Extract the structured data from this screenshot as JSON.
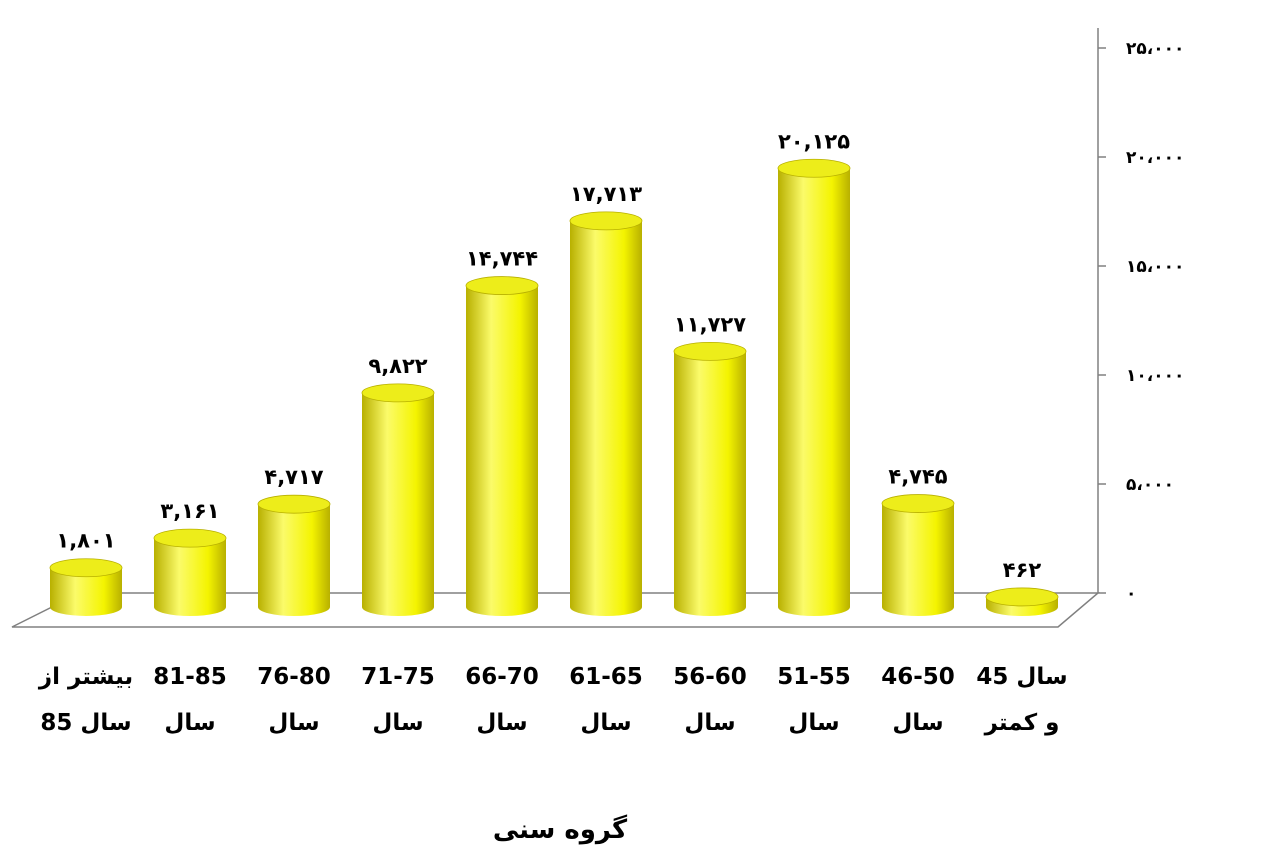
{
  "chart_data": {
    "type": "bar",
    "style": "3d-cylinder",
    "orientation": "right-to-left",
    "categories": [
      [
        "45 سال",
        "و کمتر"
      ],
      [
        "46-50",
        "سال"
      ],
      [
        "51-55",
        "سال"
      ],
      [
        "56-60",
        "سال"
      ],
      [
        "61-65",
        "سال"
      ],
      [
        "66-70",
        "سال"
      ],
      [
        "71-75",
        "سال"
      ],
      [
        "76-80",
        "سال"
      ],
      [
        "81-85",
        "سال"
      ],
      [
        "بیشتر از",
        "85 سال"
      ]
    ],
    "values": [
      462,
      4745,
      20125,
      11727,
      17713,
      14744,
      9822,
      4717,
      3161,
      1801
    ],
    "value_labels": [
      "۴۶۲",
      "۴,۷۴۵",
      "۲۰,۱۲۵",
      "۱۱,۷۲۷",
      "۱۷,۷۱۳",
      "۱۴,۷۴۴",
      "۹,۸۲۲",
      "۴,۷۱۷",
      "۳,۱۶۱",
      "۱,۸۰۱"
    ],
    "yticks": [
      "۰",
      "۵،۰۰۰",
      "۱۰،۰۰۰",
      "۱۵،۰۰۰",
      "۲۰،۰۰۰",
      "۲۵،۰۰۰"
    ],
    "ylim": [
      0,
      25000
    ],
    "ytick_step": 5000,
    "yaxis_side": "right",
    "xlabel": "گروه سنی",
    "ylabel": "",
    "title": "",
    "grid": false,
    "legend": "none",
    "colors": {
      "bar_light": "#fbfb6a",
      "bar_mid": "#f4f400",
      "bar_dark": "#b8b000",
      "bar_top": "#eded1a",
      "floor_stroke": "#808080",
      "axis": "#808080"
    }
  }
}
